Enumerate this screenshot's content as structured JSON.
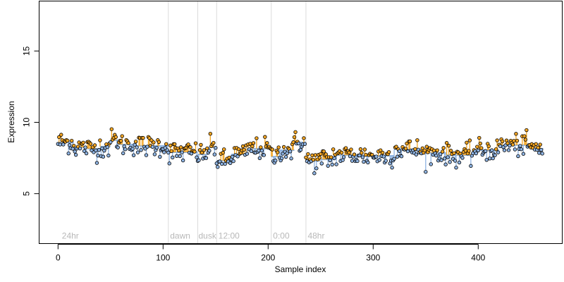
{
  "chart_data": {
    "type": "scatter",
    "title": "",
    "xlabel": "Sample index",
    "ylabel": "Expression",
    "xlim": [
      -18,
      480
    ],
    "ylim": [
      1.5,
      18.5
    ],
    "xticks": [
      0,
      100,
      200,
      300,
      400
    ],
    "yticks": [
      5,
      10,
      15
    ],
    "grid": false,
    "legend": "none",
    "region_boundaries": [
      105,
      133,
      151,
      203,
      236
    ],
    "region_labels": [
      {
        "text": "24hr",
        "x": 3
      },
      {
        "text": "dawn",
        "x": 106
      },
      {
        "text": "dusk",
        "x": 133
      },
      {
        "text": "12:00",
        "x": 152
      },
      {
        "text": "0:00",
        "x": 204
      },
      {
        "text": "48hr",
        "x": 237
      }
    ],
    "segments": [
      {
        "start": 0,
        "end": 15,
        "mean": 8.6
      },
      {
        "start": 15,
        "end": 28,
        "mean": 8.25
      },
      {
        "start": 28,
        "end": 40,
        "mean": 8.15
      },
      {
        "start": 40,
        "end": 50,
        "mean": 8.3
      },
      {
        "start": 50,
        "end": 58,
        "mean": 8.75
      },
      {
        "start": 58,
        "end": 75,
        "mean": 8.45
      },
      {
        "start": 75,
        "end": 105,
        "mean": 8.35
      },
      {
        "start": 105,
        "end": 133,
        "mean": 7.9
      },
      {
        "start": 133,
        "end": 143,
        "mean": 7.75
      },
      {
        "start": 143,
        "end": 151,
        "mean": 8.25
      },
      {
        "start": 151,
        "end": 165,
        "mean": 7.3
      },
      {
        "start": 165,
        "end": 180,
        "mean": 7.75
      },
      {
        "start": 180,
        "end": 203,
        "mean": 8.15
      },
      {
        "start": 203,
        "end": 210,
        "mean": 7.6
      },
      {
        "start": 210,
        "end": 225,
        "mean": 8.05
      },
      {
        "start": 225,
        "end": 236,
        "mean": 8.6
      },
      {
        "start": 236,
        "end": 250,
        "mean": 7.3
      },
      {
        "start": 250,
        "end": 262,
        "mean": 7.4
      },
      {
        "start": 262,
        "end": 290,
        "mean": 7.7
      },
      {
        "start": 290,
        "end": 320,
        "mean": 7.65
      },
      {
        "start": 320,
        "end": 345,
        "mean": 8.1
      },
      {
        "start": 345,
        "end": 370,
        "mean": 7.85
      },
      {
        "start": 370,
        "end": 395,
        "mean": 7.7
      },
      {
        "start": 395,
        "end": 420,
        "mean": 8.05
      },
      {
        "start": 420,
        "end": 450,
        "mean": 8.4
      },
      {
        "start": 450,
        "end": 462,
        "mean": 8.15
      }
    ],
    "noise_sd": 0.38,
    "colors": {
      "above": "#f5a623",
      "below": "#8fb4e3",
      "segment": "#8fb4e3",
      "boundary": "#dcdcdc",
      "point_stroke": "#000000"
    }
  }
}
